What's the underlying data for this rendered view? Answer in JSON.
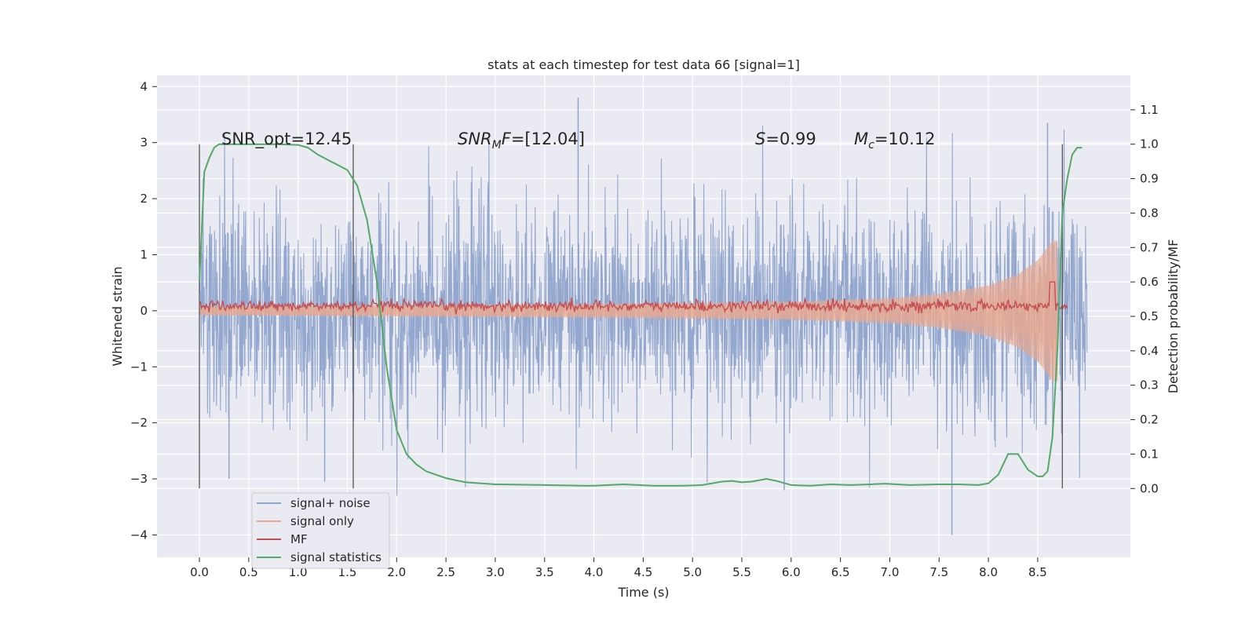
{
  "chart_data": {
    "type": "line",
    "title": "stats at each timestep for test data 66 [signal=1]",
    "xlabel": "Time (s)",
    "ylabel": "Whitened strain",
    "y2label": "Detection probability/MF",
    "xlim": [
      -0.43,
      9.44
    ],
    "ylim": [
      -4.4,
      4.2
    ],
    "y2lim": [
      -0.2,
      1.2
    ],
    "xticks": [
      "0.0",
      "0.5",
      "1.0",
      "1.5",
      "2.0",
      "2.5",
      "3.0",
      "3.5",
      "4.0",
      "4.5",
      "5.0",
      "5.5",
      "6.0",
      "6.5",
      "7.0",
      "7.5",
      "8.0",
      "8.5"
    ],
    "yticks": [
      "−4",
      "−3",
      "−2",
      "−1",
      "0",
      "1",
      "2",
      "3",
      "4"
    ],
    "y2ticks": [
      "0.0",
      "0.1",
      "0.2",
      "0.3",
      "0.4",
      "0.5",
      "0.6",
      "0.7",
      "0.8",
      "0.9",
      "1.0",
      "1.1"
    ],
    "grid": true,
    "legend_position": "lower-left",
    "annotations": {
      "snr_opt": "SNR_opt=12.45",
      "snr_mf_prefix": "SNR",
      "snr_mf_sub": "M",
      "snr_mf_suffix": "F",
      "snr_mf_value": "=[12.04]",
      "s_name": "S",
      "s_value": "=0.99",
      "mc_name": "M",
      "mc_sub": "c",
      "mc_value": "=10.12"
    },
    "vertical_lines_x": [
      0.0,
      1.56,
      8.75
    ],
    "series": [
      {
        "name": "signal+ noise",
        "color": "#8fa4cc",
        "description": "whitened noise plus signal, approx Gaussian, std ~1, x from 0 to 9",
        "x_range": [
          0.0,
          9.0
        ],
        "approx_std": 0.95,
        "notable_peaks": [
          [
            3.84,
            3.8
          ],
          [
            7.63,
            -4.0
          ],
          [
            8.6,
            3.35
          ],
          [
            1.27,
            -3.05
          ],
          [
            0.3,
            -3.0
          ],
          [
            5.93,
            -3.2
          ]
        ]
      },
      {
        "name": "signal only",
        "color": "#e8a88f",
        "description": "chirp with amplitude growing toward merger near x=8.65",
        "x_range": [
          0.0,
          8.7
        ],
        "amplitude_points": [
          [
            0.0,
            0.08
          ],
          [
            2.0,
            0.1
          ],
          [
            4.0,
            0.12
          ],
          [
            6.0,
            0.16
          ],
          [
            7.0,
            0.22
          ],
          [
            7.5,
            0.3
          ],
          [
            8.0,
            0.45
          ],
          [
            8.3,
            0.65
          ],
          [
            8.5,
            0.9
          ],
          [
            8.65,
            1.25
          ]
        ]
      },
      {
        "name": "MF",
        "color": "#c44e52",
        "description": "matched filter output on right axis, ~0.53 with small noise and a peak at merger",
        "x_range": [
          0.0,
          8.8
        ],
        "baseline": 0.53,
        "peak": [
          8.65,
          0.6
        ]
      },
      {
        "name": "signal statistics",
        "color": "#55a868",
        "description": "detection probability on right axis",
        "x": [
          0.0,
          0.05,
          0.1,
          0.15,
          0.2,
          0.3,
          0.5,
          0.8,
          1.0,
          1.1,
          1.2,
          1.3,
          1.4,
          1.5,
          1.6,
          1.7,
          1.8,
          1.9,
          2.0,
          2.1,
          2.2,
          2.3,
          2.5,
          2.7,
          3.0,
          3.5,
          3.9,
          4.0,
          4.3,
          4.6,
          4.9,
          5.1,
          5.3,
          5.4,
          5.5,
          5.6,
          5.75,
          5.85,
          6.0,
          6.2,
          6.4,
          6.6,
          6.8,
          6.95,
          7.2,
          7.5,
          7.7,
          7.9,
          8.0,
          8.1,
          8.2,
          8.3,
          8.4,
          8.5,
          8.55,
          8.6,
          8.65,
          8.7,
          8.75,
          8.8,
          8.85,
          8.9,
          8.95
        ],
        "y": [
          0.6,
          0.92,
          0.96,
          0.99,
          1.0,
          1.0,
          1.0,
          1.0,
          0.998,
          0.99,
          0.97,
          0.955,
          0.94,
          0.925,
          0.88,
          0.78,
          0.6,
          0.35,
          0.17,
          0.1,
          0.07,
          0.05,
          0.03,
          0.018,
          0.012,
          0.01,
          0.008,
          0.008,
          0.012,
          0.008,
          0.008,
          0.01,
          0.02,
          0.022,
          0.018,
          0.02,
          0.028,
          0.022,
          0.01,
          0.008,
          0.012,
          0.01,
          0.012,
          0.014,
          0.01,
          0.012,
          0.012,
          0.01,
          0.015,
          0.04,
          0.1,
          0.1,
          0.055,
          0.035,
          0.035,
          0.05,
          0.15,
          0.4,
          0.8,
          0.9,
          0.97,
          0.99,
          0.99
        ]
      }
    ]
  }
}
